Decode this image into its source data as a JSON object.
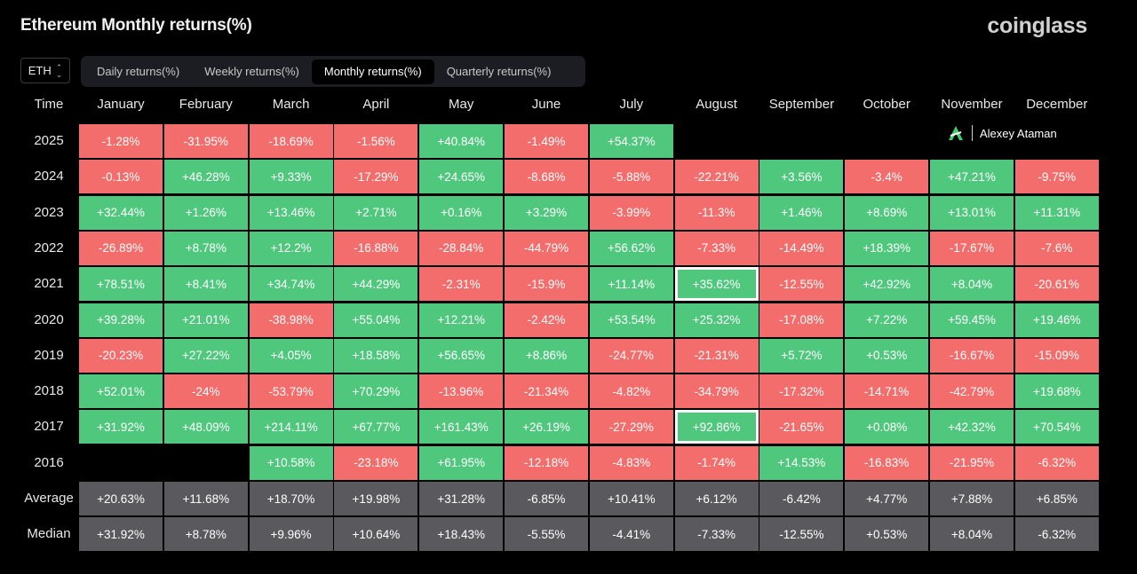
{
  "header": {
    "title": "Ethereum Monthly returns(%)",
    "brand": "coinglass"
  },
  "symbol_select": {
    "value": "ETH"
  },
  "tabs": [
    {
      "label": "Daily returns(%)",
      "active": false
    },
    {
      "label": "Weekly returns(%)",
      "active": false
    },
    {
      "label": "Monthly returns(%)",
      "active": true
    },
    {
      "label": "Quarterly returns(%)",
      "active": false
    }
  ],
  "watermark": {
    "name": "Alexey Ataman"
  },
  "table": {
    "time_header": "Time",
    "months": [
      "January",
      "February",
      "March",
      "April",
      "May",
      "June",
      "July",
      "August",
      "September",
      "October",
      "November",
      "December"
    ],
    "rows": [
      {
        "label": "2025",
        "cells": [
          "-1.28%",
          "-31.95%",
          "-18.69%",
          "-1.56%",
          "+40.84%",
          "-1.49%",
          "+54.37%",
          "",
          "",
          "",
          "",
          ""
        ]
      },
      {
        "label": "2024",
        "cells": [
          "-0.13%",
          "+46.28%",
          "+9.33%",
          "-17.29%",
          "+24.65%",
          "-8.68%",
          "-5.88%",
          "-22.21%",
          "+3.56%",
          "-3.4%",
          "+47.21%",
          "-9.75%"
        ]
      },
      {
        "label": "2023",
        "cells": [
          "+32.44%",
          "+1.26%",
          "+13.46%",
          "+2.71%",
          "+0.16%",
          "+3.29%",
          "-3.99%",
          "-11.3%",
          "+1.46%",
          "+8.69%",
          "+13.01%",
          "+11.31%"
        ]
      },
      {
        "label": "2022",
        "cells": [
          "-26.89%",
          "+8.78%",
          "+12.2%",
          "-16.88%",
          "-28.84%",
          "-44.79%",
          "+56.62%",
          "-7.33%",
          "-14.49%",
          "+18.39%",
          "-17.67%",
          "-7.6%"
        ]
      },
      {
        "label": "2021",
        "cells": [
          "+78.51%",
          "+8.41%",
          "+34.74%",
          "+44.29%",
          "-2.31%",
          "-15.9%",
          "+11.14%",
          "+35.62%",
          "-12.55%",
          "+42.92%",
          "+8.04%",
          "-20.61%"
        ],
        "highlight": [
          7
        ]
      },
      {
        "label": "2020",
        "cells": [
          "+39.28%",
          "+21.01%",
          "-38.98%",
          "+55.04%",
          "+12.21%",
          "-2.42%",
          "+53.54%",
          "+25.32%",
          "-17.08%",
          "+7.22%",
          "+59.45%",
          "+19.46%"
        ]
      },
      {
        "label": "2019",
        "cells": [
          "-20.23%",
          "+27.22%",
          "+4.05%",
          "+18.58%",
          "+56.65%",
          "+8.86%",
          "-24.77%",
          "-21.31%",
          "+5.72%",
          "+0.53%",
          "-16.67%",
          "-15.09%"
        ]
      },
      {
        "label": "2018",
        "cells": [
          "+52.01%",
          "-24%",
          "-53.79%",
          "+70.29%",
          "-13.96%",
          "-21.34%",
          "-4.82%",
          "-34.79%",
          "-17.32%",
          "-14.71%",
          "-42.79%",
          "+19.68%"
        ]
      },
      {
        "label": "2017",
        "cells": [
          "+31.92%",
          "+48.09%",
          "+214.11%",
          "+67.77%",
          "+161.43%",
          "+26.19%",
          "-27.29%",
          "+92.86%",
          "-21.65%",
          "+0.08%",
          "+42.32%",
          "+70.54%"
        ],
        "highlight": [
          7
        ]
      },
      {
        "label": "2016",
        "cells": [
          "",
          "",
          "+10.58%",
          "-23.18%",
          "+61.95%",
          "-12.18%",
          "-4.83%",
          "-1.74%",
          "+14.53%",
          "-16.83%",
          "-21.95%",
          "-6.32%"
        ]
      }
    ],
    "summary_rows": [
      {
        "label": "Average",
        "cells": [
          "+20.63%",
          "+11.68%",
          "+18.70%",
          "+19.98%",
          "+31.28%",
          "-6.85%",
          "+10.41%",
          "+6.12%",
          "-6.42%",
          "+4.77%",
          "+7.88%",
          "+6.85%"
        ]
      },
      {
        "label": "Median",
        "cells": [
          "+31.92%",
          "+8.78%",
          "+9.96%",
          "+10.64%",
          "+18.43%",
          "-5.55%",
          "-4.41%",
          "-7.33%",
          "-12.55%",
          "+0.53%",
          "+8.04%",
          "-6.32%"
        ]
      }
    ]
  },
  "colors": {
    "positive": "#4fc87e",
    "negative": "#f26d6b",
    "summary": "#5a5a5e",
    "background": "#000000"
  }
}
